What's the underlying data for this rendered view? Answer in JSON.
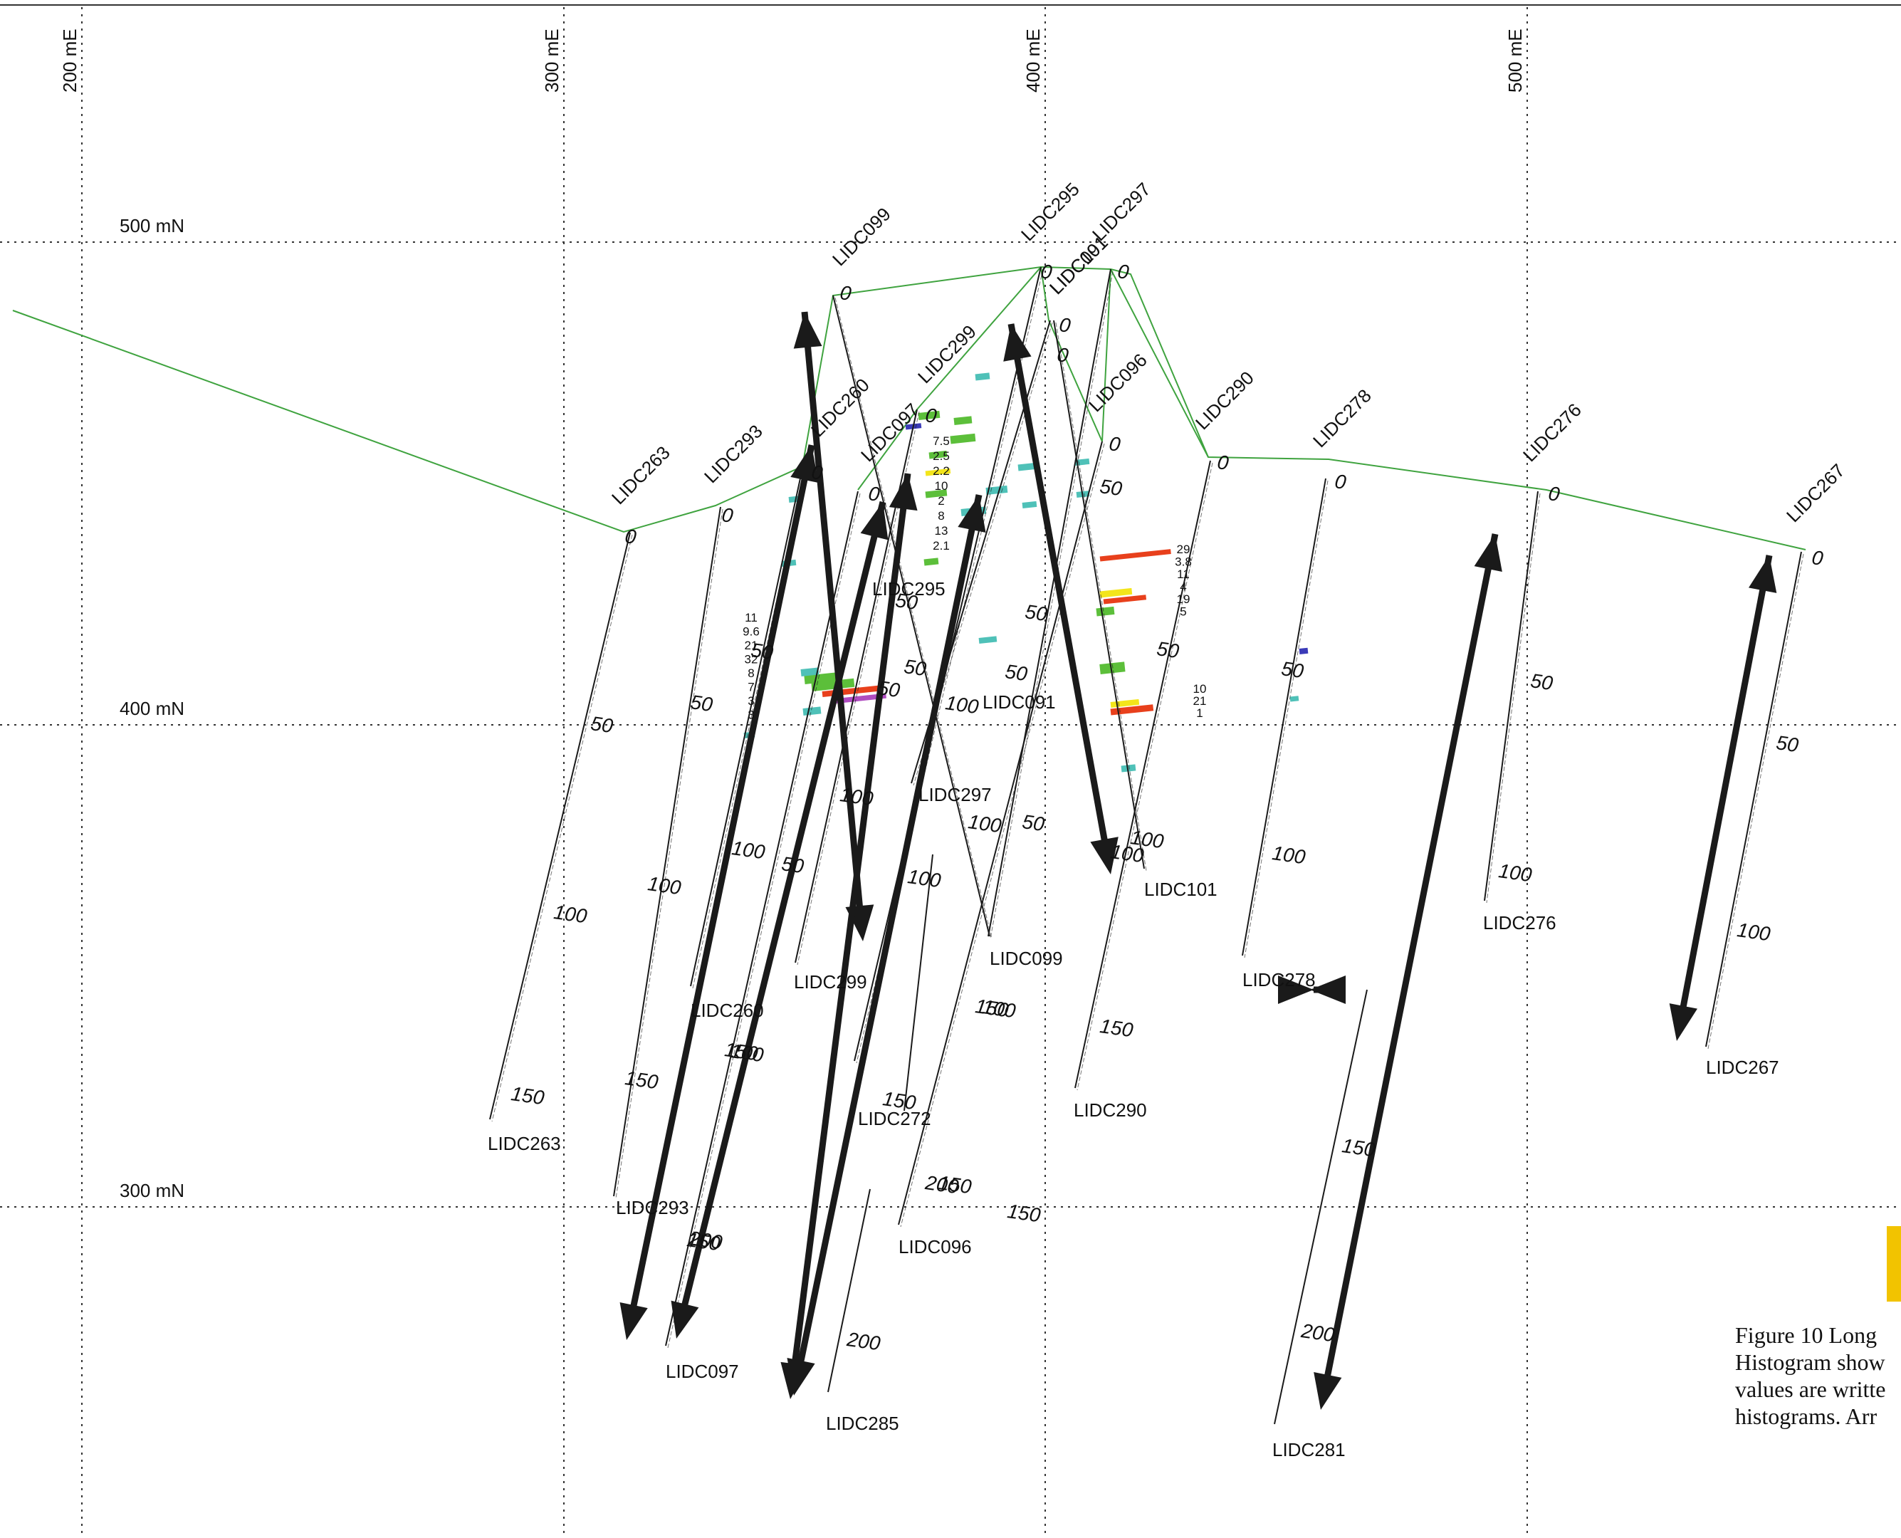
{
  "grid": {
    "eastings": [
      "200 mE",
      "300 mE",
      "400 mE",
      "500 mE"
    ],
    "northings": [
      "500 mN",
      "400 mN",
      "300 mN"
    ]
  },
  "holes": [
    {
      "id": "LIDC263",
      "collar_label": "LIDC263",
      "end_label": "LIDC263",
      "depth_ticks": [
        "0",
        "50",
        "100",
        "150"
      ]
    },
    {
      "id": "LIDC293",
      "collar_label": "LIDC293",
      "end_label": "LIDC293",
      "depth_ticks": [
        "0",
        "50",
        "100",
        "150",
        "200"
      ]
    },
    {
      "id": "LIDC260",
      "collar_label": "LIDC260",
      "end_label": "LIDC260",
      "depth_ticks": [
        "0",
        "50",
        "100",
        "150"
      ]
    },
    {
      "id": "LIDC099",
      "collar_label": "LIDC099",
      "end_label": "LIDC099",
      "depth_ticks": [
        "0",
        "50",
        "100",
        "150"
      ]
    },
    {
      "id": "LIDC097",
      "collar_label": "LIDC097",
      "end_label": "LIDC097",
      "depth_ticks": [
        "0",
        "50",
        "100",
        "150",
        "200"
      ]
    },
    {
      "id": "LIDC299",
      "collar_label": "LIDC299",
      "end_label": "LIDC299",
      "depth_ticks": [
        "0",
        "50",
        "100"
      ]
    },
    {
      "id": "LIDC295",
      "collar_label": "LIDC295",
      "end_label": "LIDC295",
      "depth_ticks": [
        "0",
        "50"
      ]
    },
    {
      "id": "LIDC091",
      "collar_label": "LIDC091",
      "end_label": "LIDC091",
      "depth_ticks": [
        "0",
        "50",
        "100"
      ]
    },
    {
      "id": "LIDC297",
      "collar_label": "LIDC297",
      "end_label": "LIDC297",
      "depth_ticks": [
        "0",
        "50",
        "100",
        "150"
      ]
    },
    {
      "id": "LIDC101",
      "collar_label": "LIDC101",
      "end_label": "LIDC101",
      "depth_ticks": [
        "0",
        "50",
        "100"
      ]
    },
    {
      "id": "LIDC096",
      "collar_label": "LIDC096",
      "end_label": "LIDC096",
      "depth_ticks": [
        "0",
        "50",
        "100",
        "150",
        "200"
      ]
    },
    {
      "id": "LIDC290",
      "collar_label": "LIDC290",
      "end_label": "LIDC290",
      "depth_ticks": [
        "0",
        "50",
        "100",
        "150"
      ]
    },
    {
      "id": "LIDC278",
      "collar_label": "LIDC278",
      "end_label": "LIDC278",
      "depth_ticks": [
        "0",
        "50",
        "100"
      ]
    },
    {
      "id": "LIDC276",
      "collar_label": "LIDC276",
      "end_label": "LIDC276",
      "depth_ticks": [
        "0",
        "50",
        "100"
      ]
    },
    {
      "id": "LIDC267",
      "collar_label": "LIDC267",
      "end_label": "LIDC267",
      "depth_ticks": [
        "0",
        "50",
        "100"
      ]
    },
    {
      "id": "LIDC272",
      "collar_label": "",
      "end_label": "LIDC272",
      "depth_ticks": [
        "150",
        "200"
      ]
    },
    {
      "id": "LIDC285",
      "collar_label": "",
      "end_label": "LIDC285",
      "depth_ticks": [
        "200"
      ]
    },
    {
      "id": "LIDC281",
      "collar_label": "",
      "end_label": "LIDC281",
      "depth_ticks": [
        "150",
        "200"
      ]
    }
  ],
  "assay_labels": {
    "lidc260": [
      "11",
      "9.6",
      "21",
      "32",
      "8",
      "7",
      "3",
      "3"
    ],
    "lidc299": [
      "7.5",
      "2.5",
      "2.2",
      "10",
      "2",
      "8",
      "13",
      "2.1"
    ],
    "lidc101_upper": [
      "29",
      "3.8",
      "11",
      "4",
      "19",
      "5"
    ],
    "lidc101_lower": [
      "10",
      "21",
      "1"
    ]
  },
  "colors": {
    "section_line": "#3fa33f",
    "hole_trace": "#1a1a1a",
    "grid": "#333333",
    "histogram_red": "#e8401c",
    "histogram_yellow": "#f3e51b",
    "histogram_green": "#5cbf3a",
    "histogram_cyan": "#4fc1b8",
    "histogram_purple": "#b04cc0",
    "histogram_blue": "#3b3bb8",
    "logo": "#f2c300"
  },
  "caption": {
    "line1": "Figure 10 Long",
    "line2": "Histogram show",
    "line3": "values are writte",
    "line4": "histograms. Arr"
  }
}
